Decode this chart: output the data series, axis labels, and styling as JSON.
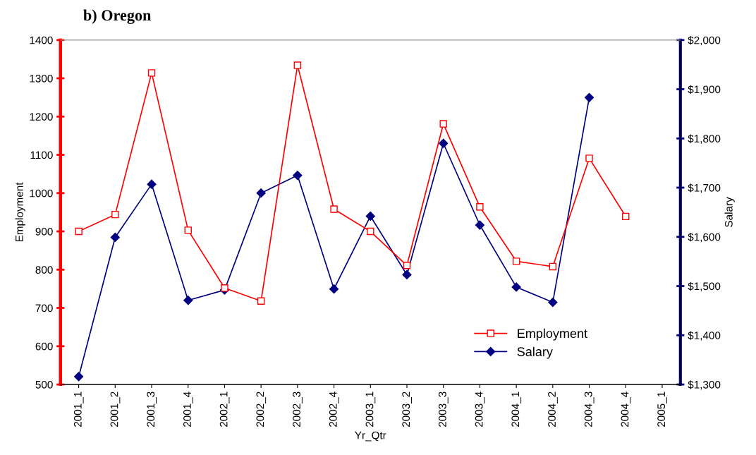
{
  "chart_data": {
    "type": "line",
    "title": "b) Oregon",
    "xlabel": "Yr_Qtr",
    "ylabel": "Employment",
    "y2label": "Salary",
    "categories": [
      "2001_1",
      "2001_2",
      "2001_3",
      "2001_4",
      "2002_1",
      "2002_2",
      "2002_3",
      "2002_4",
      "2003_1",
      "2003_2",
      "2003_3",
      "2003_4",
      "2004_1",
      "2004_2",
      "2004_3",
      "2004_4",
      "2005_1"
    ],
    "series": [
      {
        "name": "Employment",
        "color": "#ff0000",
        "marker": "square",
        "values": [
          900,
          944,
          1314,
          903,
          752,
          718,
          1334,
          958,
          900,
          811,
          1181,
          964,
          822,
          808,
          1091,
          939,
          null
        ]
      },
      {
        "name": "Salary",
        "color": "#000080",
        "marker": "diamond",
        "axis": "y2",
        "values": [
          1316,
          1599,
          1707,
          1471,
          1492,
          1689,
          1725,
          1494,
          1642,
          1523,
          1790,
          1624,
          1498,
          1467,
          1883,
          null,
          null
        ]
      }
    ],
    "ylim": [
      500,
      1400
    ],
    "yticks": [
      500,
      600,
      700,
      800,
      900,
      1000,
      1100,
      1200,
      1300,
      1400
    ],
    "y2lim": [
      1300,
      2000
    ],
    "y2ticks": [
      {
        "value": 1300,
        "label": "$1,300"
      },
      {
        "value": 1400,
        "label": "$1,400"
      },
      {
        "value": 1500,
        "label": "$1,500"
      },
      {
        "value": 1600,
        "label": "$1,600"
      },
      {
        "value": 1700,
        "label": "$1,700"
      },
      {
        "value": 1800,
        "label": "$1,800"
      },
      {
        "value": 1900,
        "label": "$1,900"
      },
      {
        "value": 2000,
        "label": "$2,000"
      }
    ],
    "grid": false,
    "legend": "bottom right",
    "line_style": "solid"
  }
}
